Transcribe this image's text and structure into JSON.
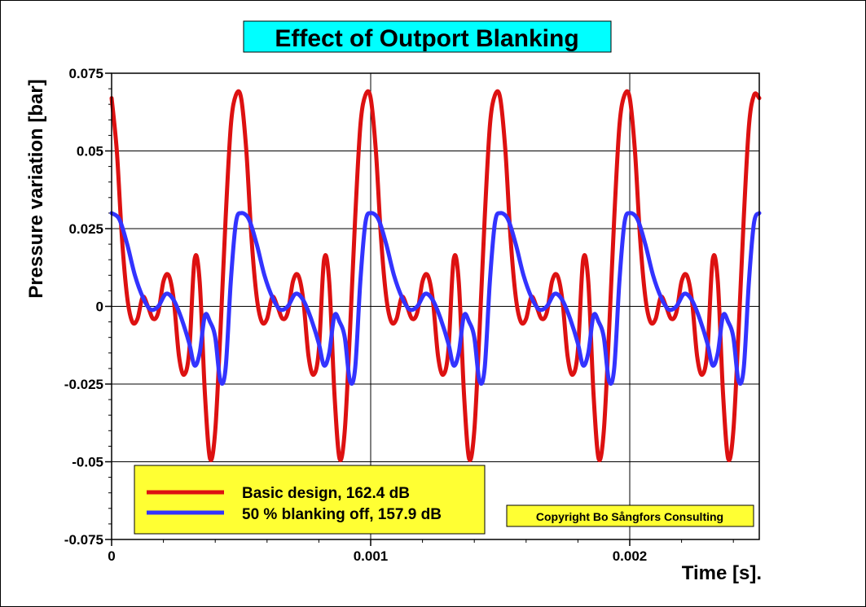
{
  "chart_data": {
    "type": "line",
    "title": "Effect of Outport Blanking",
    "xlabel": "Time [s].",
    "ylabel": "Pressure variation [bar]",
    "xlim": [
      0,
      0.0025
    ],
    "ylim": [
      -0.075,
      0.075
    ],
    "xticks": [
      0,
      0.001,
      0.002
    ],
    "xtick_labels": [
      "0",
      "0.001",
      "0.002"
    ],
    "yticks": [
      -0.075,
      -0.05,
      -0.025,
      0,
      0.025,
      0.05,
      0.075
    ],
    "ytick_labels": [
      "-0.075",
      "-0.05",
      "-0.025",
      "0",
      "0.025",
      "0.05",
      "0.075"
    ],
    "grid": true,
    "legend_position": "bottom-left",
    "period": 0.0005,
    "series": [
      {
        "name": "Basic design, 162.4 dB",
        "color": "#dd1111",
        "cycle_x": [
          0,
          2e-05,
          4e-05,
          6e-05,
          8e-05,
          0.0001,
          0.00012,
          0.00014,
          0.00016,
          0.00018,
          0.0002,
          0.00022,
          0.00024,
          0.00026,
          0.00028,
          0.0003,
          0.00032,
          0.00034,
          0.00036,
          0.00038,
          0.0004,
          0.00042,
          0.00044,
          0.00046,
          0.00048,
          0.0005
        ],
        "cycle_y": [
          0.067,
          0.05,
          0.022,
          0.003,
          -0.005,
          -0.004,
          0.003,
          0.0,
          -0.004,
          -0.002,
          0.008,
          0.01,
          0.002,
          -0.016,
          -0.022,
          -0.014,
          0.015,
          0.008,
          -0.028,
          -0.049,
          -0.04,
          -0.008,
          0.028,
          0.058,
          0.068,
          0.067
        ]
      },
      {
        "name": "50 % blanking off, 157.9 dB",
        "color": "#3333ff",
        "cycle_x": [
          0,
          3e-05,
          6e-05,
          9e-05,
          0.00012,
          0.00015,
          0.00018,
          0.00021,
          0.00024,
          0.00027,
          0.0003,
          0.00032,
          0.00034,
          0.00036,
          0.00038,
          0.0004,
          0.00042,
          0.00044,
          0.00046,
          0.00048,
          0.0005
        ],
        "cycle_y": [
          0.03,
          0.028,
          0.02,
          0.01,
          0.003,
          -0.001,
          0.0,
          0.004,
          0.002,
          -0.004,
          -0.012,
          -0.019,
          -0.015,
          -0.003,
          -0.005,
          -0.01,
          -0.024,
          -0.02,
          0.008,
          0.027,
          0.03
        ]
      }
    ],
    "annotation": "Copyright Bo Sångfors Consulting"
  },
  "colors": {
    "title_bg": "#00ffff",
    "legend_bg": "#ffff33",
    "copyright_bg": "#ffff33",
    "grid": "#000000"
  }
}
